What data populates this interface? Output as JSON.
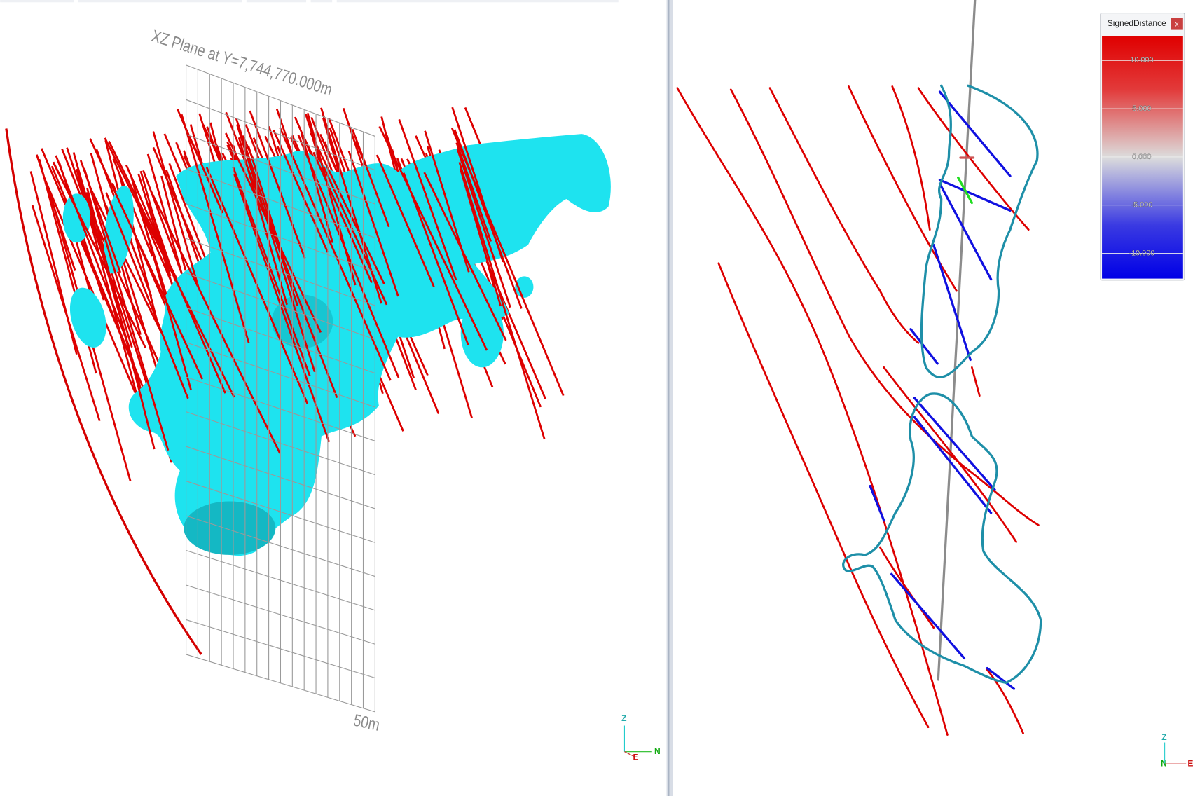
{
  "left_view": {
    "plane_label": "XZ Plane at Y=7,744,770.000m",
    "scale_label": "50m",
    "axes": {
      "z": "Z",
      "n": "N",
      "e": "E"
    }
  },
  "right_view": {
    "axes": {
      "z": "Z",
      "n": "N",
      "e": "E"
    }
  },
  "legend": {
    "title": "SignedDistance",
    "close": "x",
    "labels": [
      "10.000",
      "5.000",
      "0.000",
      "-5.000",
      "-10.000"
    ]
  }
}
